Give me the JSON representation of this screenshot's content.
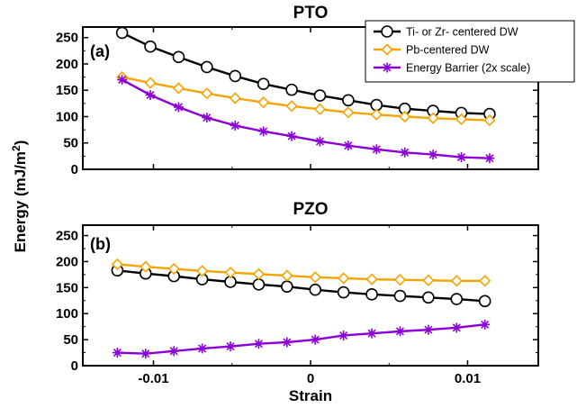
{
  "figure": {
    "ylabel": "Energy (mJ/m",
    "ylabel_sup": "2",
    "ylabel_close": ")",
    "xlabel": "Strain"
  },
  "legend": {
    "entries": [
      {
        "label": "Ti- or Zr- centered DW",
        "color": "#000000",
        "marker": "circle"
      },
      {
        "label": "Pb-centered DW",
        "color": "#F5A300",
        "marker": "diamond"
      },
      {
        "label": "Energy Barrier (2x scale)",
        "color": "#8B00D6",
        "marker": "asterisk"
      }
    ]
  },
  "chart_data": [
    {
      "type": "line",
      "title": "PTO",
      "panel_label": "(a)",
      "xlabel": "",
      "ylabel": "Energy (mJ/m2)",
      "xlim": [
        -0.0145,
        0.0145
      ],
      "ylim": [
        0,
        270
      ],
      "yticks": [
        0,
        50,
        100,
        150,
        200,
        250
      ],
      "ytick_labels": [
        "0",
        "50",
        "100",
        "150",
        "200",
        "250"
      ],
      "xticks": [
        -0.01,
        0,
        0.01
      ],
      "xtick_labels": [],
      "x": [
        -0.012,
        -0.0102,
        -0.0084,
        -0.0066,
        -0.0048,
        -0.003,
        -0.0012,
        0.0006,
        0.0024,
        0.0042,
        0.006,
        0.0078,
        0.0096,
        0.0114
      ],
      "series": [
        {
          "name": "Ti- or Zr- centered DW",
          "color": "#000000",
          "marker": "circle",
          "values": [
            259,
            233,
            213,
            194,
            177,
            162,
            151,
            140,
            131,
            122,
            115,
            111,
            107,
            105
          ]
        },
        {
          "name": "Pb-centered DW",
          "color": "#F5A300",
          "marker": "diamond",
          "values": [
            175,
            164,
            154,
            144,
            135,
            127,
            120,
            114,
            108,
            104,
            100,
            97,
            95,
            93
          ]
        },
        {
          "name": "Energy Barrier (2x scale)",
          "color": "#8B00D6",
          "marker": "asterisk",
          "values": [
            170,
            141,
            118,
            98,
            83,
            72,
            63,
            53,
            45,
            38,
            32,
            28,
            23,
            21
          ]
        }
      ]
    },
    {
      "type": "line",
      "title": "PZO",
      "panel_label": "(b)",
      "xlabel": "Strain",
      "ylabel": "Energy (mJ/m2)",
      "xlim": [
        -0.0145,
        0.0145
      ],
      "ylim": [
        0,
        270
      ],
      "yticks": [
        0,
        50,
        100,
        150,
        200,
        250
      ],
      "ytick_labels": [
        "0",
        "50",
        "100",
        "150",
        "200",
        "250"
      ],
      "xticks": [
        -0.01,
        0,
        0.01
      ],
      "xtick_labels": [
        "-0.01",
        "0",
        "0.01"
      ],
      "x": [
        -0.0123,
        -0.0105,
        -0.0087,
        -0.0069,
        -0.0051,
        -0.0033,
        -0.0015,
        0.0003,
        0.0021,
        0.0039,
        0.0057,
        0.0075,
        0.0093,
        0.0111
      ],
      "series": [
        {
          "name": "Ti- or Zr- centered DW",
          "color": "#000000",
          "marker": "circle",
          "values": [
            183,
            177,
            172,
            166,
            161,
            156,
            152,
            146,
            141,
            137,
            134,
            131,
            128,
            124
          ]
        },
        {
          "name": "Pb-centered DW",
          "color": "#F5A300",
          "marker": "diamond",
          "values": [
            195,
            190,
            186,
            182,
            179,
            176,
            173,
            170,
            168,
            166,
            165,
            164,
            163,
            163
          ]
        },
        {
          "name": "Energy Barrier (2x scale)",
          "color": "#8B00D6",
          "marker": "asterisk",
          "values": [
            25,
            23,
            28,
            33,
            37,
            42,
            45,
            50,
            58,
            62,
            66,
            69,
            73,
            79
          ]
        }
      ]
    }
  ]
}
